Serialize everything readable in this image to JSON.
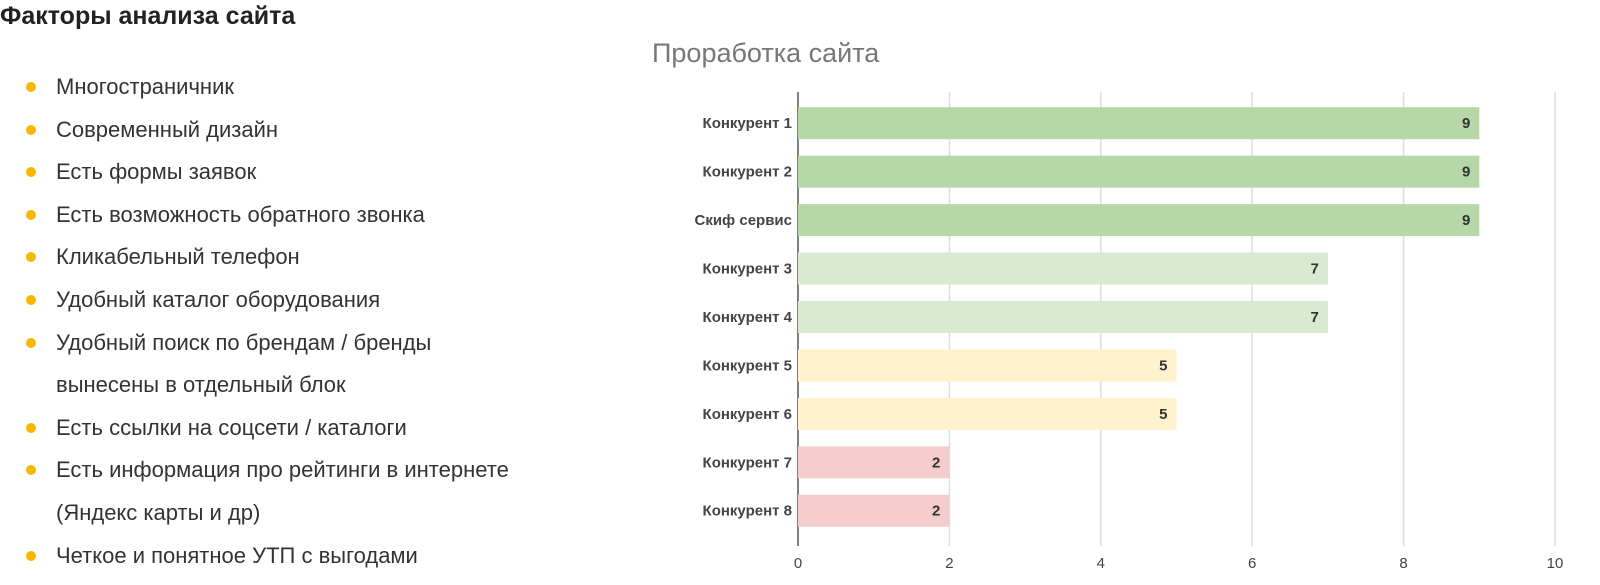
{
  "header": {
    "title": "Факторы анализа сайта"
  },
  "list": {
    "items": [
      "Многостраничник",
      "Современный дизайн",
      "Есть формы заявок",
      "Есть возможность обратного звонка",
      "Кликабельный телефон",
      "Удобный каталог оборудования",
      "Удобный поиск по брендам / бренды вынесены в отдельный блок",
      "Есть ссылки на соцсети / каталоги",
      "Есть информация про рейтинги в интернете (Яндекс карты и др)",
      "Четкое и понятное УТП с выгодами"
    ]
  },
  "chart_data": {
    "type": "hbar",
    "title": "Проработка сайта",
    "categories": [
      "Конкурент 1",
      "Конкурент 2",
      "Скиф сервис",
      "Конкурент 3",
      "Конкурент 4",
      "Конкурент 5",
      "Конкурент 6",
      "Конкурент 7",
      "Конкурент 8"
    ],
    "values": [
      9,
      9,
      9,
      7,
      7,
      5,
      5,
      2,
      2
    ],
    "colors": [
      "#b6d7a8",
      "#b6d7a8",
      "#b6d7a8",
      "#d9ead3",
      "#d9ead3",
      "#fff2cc",
      "#fff2cc",
      "#f4cccc",
      "#f4cccc"
    ],
    "xlim": [
      0,
      10
    ],
    "xticks": [
      0,
      2,
      4,
      6,
      8,
      10
    ],
    "grid": true
  }
}
